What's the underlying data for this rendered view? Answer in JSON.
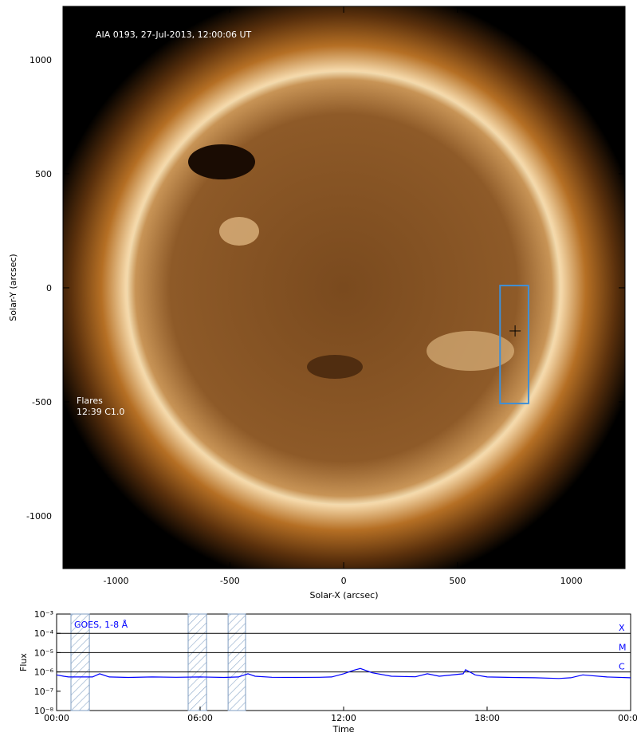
{
  "chart_data": [
    {
      "type": "image",
      "annotation": "AIA 0193, 27-Jul-2013, 12:00:06 UT",
      "flare_title": "Flares",
      "flare_entry": "12:39 C1.0",
      "xlabel": "Solar-X (arcsec)",
      "ylabel": "Solar-Y (arcsec)",
      "xlim": [
        -1233,
        1236
      ],
      "ylim": [
        -1231,
        1234
      ],
      "xticks": [
        -1000,
        -500,
        0,
        500,
        1000
      ],
      "yticks": [
        -1000,
        -500,
        0,
        500,
        1000
      ],
      "box": {
        "x": [
          687,
          812
        ],
        "y": [
          -507,
          10
        ],
        "color": "#3f8fd6"
      },
      "marker": {
        "x": 753,
        "y": -189,
        "color": "#000000"
      }
    },
    {
      "type": "line",
      "xlabel": "Time",
      "ylabel": "Flux",
      "log_scale": true,
      "xlim": [
        0,
        24
      ],
      "xticks": [
        {
          "value": 0,
          "label": "00:00"
        },
        {
          "value": 6,
          "label": "06:00"
        },
        {
          "value": 12,
          "label": "12:00"
        },
        {
          "value": 18,
          "label": "18:00"
        },
        {
          "value": 24,
          "label": "00:00"
        }
      ],
      "ylim": [
        1e-08,
        0.001
      ],
      "yticks": [
        {
          "value": 1e-08,
          "label": "10⁻⁸"
        },
        {
          "value": 1e-07,
          "label": "10⁻⁷"
        },
        {
          "value": 1e-06,
          "label": "10⁻⁶"
        },
        {
          "value": 1e-05,
          "label": "10⁻⁵"
        },
        {
          "value": 0.0001,
          "label": "10⁻⁴"
        },
        {
          "value": 0.001,
          "label": "10⁻³"
        }
      ],
      "levels": [
        {
          "value": 0.0001,
          "label": "X"
        },
        {
          "value": 1e-05,
          "label": "M"
        },
        {
          "value": 1e-06,
          "label": "C"
        }
      ],
      "shaded": [
        [
          0.6,
          1.37
        ],
        [
          5.5,
          6.27
        ],
        [
          7.17,
          7.9
        ]
      ],
      "series": [
        {
          "name": "GOES, 1-8 Å",
          "color": "#0000ff",
          "x": [
            0,
            0.3,
            0.5,
            1,
            1.5,
            1.8,
            2.2,
            3,
            4,
            5,
            6,
            7,
            7.6,
            8,
            8.3,
            9,
            10,
            11,
            11.5,
            12,
            12.4,
            12.7,
            13.2,
            14,
            15,
            15.5,
            16,
            17,
            17.1,
            17.5,
            18,
            19,
            20,
            21,
            21.5,
            22,
            23,
            24
          ],
          "values": [
            7e-07,
            6e-07,
            5.5e-07,
            5.5e-07,
            5.5e-07,
            8e-07,
            5.5e-07,
            5.2e-07,
            5.5e-07,
            5.3e-07,
            5.5e-07,
            5.2e-07,
            5.5e-07,
            8e-07,
            6e-07,
            5.3e-07,
            5.2e-07,
            5.3e-07,
            5.5e-07,
            8e-07,
            1.2e-06,
            1.5e-06,
            9e-07,
            6e-07,
            5.6e-07,
            8e-07,
            6e-07,
            8e-07,
            1.3e-06,
            7e-07,
            5.5e-07,
            5.2e-07,
            5e-07,
            4.6e-07,
            5e-07,
            7e-07,
            5.5e-07,
            5e-07
          ]
        }
      ]
    }
  ]
}
